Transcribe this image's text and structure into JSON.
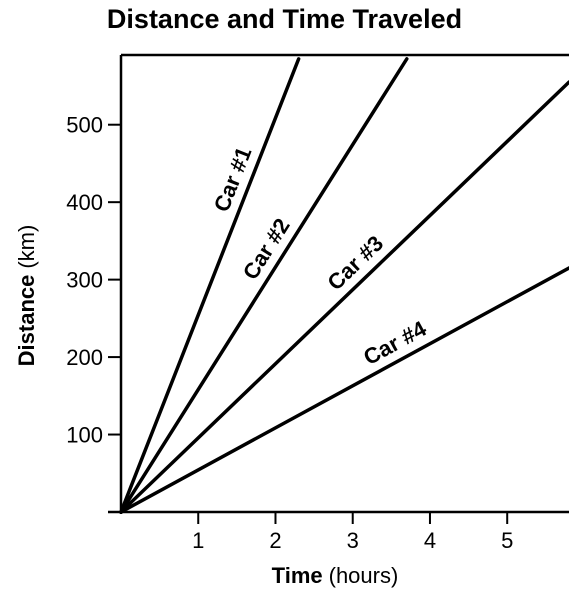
{
  "chart_data": {
    "type": "line",
    "title": "Distance and Time Traveled",
    "xlabel": {
      "main": "Time",
      "unit": "(hours)"
    },
    "ylabel": {
      "main": "Distance",
      "unit": "(km)"
    },
    "xlim": [
      0,
      5.8
    ],
    "ylim": [
      0,
      590
    ],
    "x_ticks": [
      1,
      2,
      3,
      4,
      5
    ],
    "y_ticks": [
      100,
      200,
      300,
      400,
      500
    ],
    "grid": false,
    "series": [
      {
        "name": "Car #1",
        "x": [
          0,
          2.3
        ],
        "y": [
          0,
          585
        ]
      },
      {
        "name": "Car #2",
        "x": [
          0,
          3.7
        ],
        "y": [
          0,
          585
        ]
      },
      {
        "name": "Car #3",
        "x": [
          0,
          5.8
        ],
        "y": [
          0,
          555
        ]
      },
      {
        "name": "Car #4",
        "x": [
          0,
          5.8
        ],
        "y": [
          0,
          315
        ]
      }
    ]
  }
}
